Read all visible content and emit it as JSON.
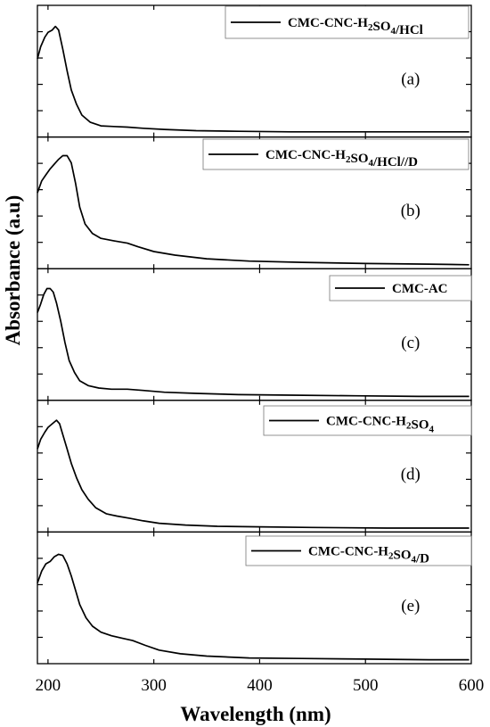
{
  "chart_data": {
    "type": "line",
    "xlabel": "Wavelength (nm)",
    "ylabel": "Absorbance (a.u)",
    "xlim": [
      190,
      600
    ],
    "x_ticks": [
      "200",
      "300",
      "400",
      "500",
      "600"
    ],
    "y_tick_labels": "none",
    "grid": false,
    "legend_placement": "top-right of each panel",
    "line_color": "#000000",
    "panels": [
      {
        "tag": "(a)",
        "legend": {
          "prefix": "CMC-CNC-H",
          "sub1": "2",
          "mid": "SO",
          "sub2": "4",
          "suffix": "/HCl"
        },
        "series": {
          "name": "CMC-CNC-H2SO4/HCl",
          "x": [
            190,
            193,
            197,
            200,
            204,
            207,
            210,
            214,
            218,
            222,
            227,
            232,
            240,
            250,
            262,
            275,
            290,
            310,
            340,
            380,
            430,
            480,
            540,
            598
          ],
          "y": [
            0.62,
            0.72,
            0.8,
            0.84,
            0.86,
            0.89,
            0.86,
            0.7,
            0.52,
            0.36,
            0.24,
            0.15,
            0.09,
            0.06,
            0.055,
            0.05,
            0.04,
            0.03,
            0.02,
            0.015,
            0.01,
            0.01,
            0.01,
            0.01
          ]
        }
      },
      {
        "tag": "(b)",
        "legend": {
          "prefix": "CMC-CNC-H",
          "sub1": "2",
          "mid": "SO",
          "sub2": "4",
          "suffix": "/HCl//D"
        },
        "series": {
          "name": "CMC-CNC-H2SO4/HCl//D",
          "x": [
            190,
            194,
            198,
            202,
            206,
            210,
            214,
            218,
            222,
            226,
            230,
            235,
            242,
            250,
            262,
            275,
            285,
            300,
            320,
            350,
            390,
            440,
            500,
            560,
            598
          ],
          "y": [
            0.6,
            0.7,
            0.75,
            0.8,
            0.84,
            0.88,
            0.91,
            0.91,
            0.85,
            0.68,
            0.48,
            0.34,
            0.26,
            0.22,
            0.2,
            0.18,
            0.15,
            0.11,
            0.08,
            0.05,
            0.03,
            0.02,
            0.01,
            0.005,
            0.0
          ]
        }
      },
      {
        "tag": "(c)",
        "legend": {
          "prefix": "CMC-AC",
          "sub1": "",
          "mid": "",
          "sub2": "",
          "suffix": ""
        },
        "series": {
          "name": "CMC-AC",
          "x": [
            190,
            193,
            196,
            199,
            202,
            205,
            208,
            212,
            216,
            220,
            225,
            230,
            238,
            248,
            260,
            275,
            290,
            310,
            340,
            380,
            430,
            490,
            550,
            598
          ],
          "y": [
            0.7,
            0.77,
            0.85,
            0.9,
            0.9,
            0.87,
            0.78,
            0.63,
            0.45,
            0.3,
            0.2,
            0.13,
            0.09,
            0.07,
            0.06,
            0.06,
            0.05,
            0.035,
            0.025,
            0.015,
            0.01,
            0.005,
            0.0,
            0.0
          ]
        }
      },
      {
        "tag": "(d)",
        "legend": {
          "prefix": "CMC-CNC-H",
          "sub1": "2",
          "mid": "SO",
          "sub2": "4",
          "suffix": ""
        },
        "series": {
          "name": "CMC-CNC-H2SO4",
          "x": [
            190,
            193,
            197,
            200,
            204,
            208,
            211,
            214,
            218,
            222,
            227,
            232,
            238,
            245,
            255,
            265,
            278,
            290,
            305,
            330,
            360,
            400,
            450,
            520,
            598
          ],
          "y": [
            0.66,
            0.74,
            0.8,
            0.84,
            0.87,
            0.9,
            0.87,
            0.78,
            0.66,
            0.54,
            0.42,
            0.32,
            0.24,
            0.17,
            0.12,
            0.1,
            0.08,
            0.06,
            0.04,
            0.025,
            0.015,
            0.01,
            0.005,
            0.0,
            0.0
          ]
        }
      },
      {
        "tag": "(e)",
        "legend": {
          "prefix": "CMC-CNC-H",
          "sub1": "2",
          "mid": "SO",
          "sub2": "4",
          "suffix": "/D"
        },
        "series": {
          "name": "CMC-CNC-H2SO4/D",
          "x": [
            190,
            194,
            198,
            202,
            206,
            210,
            214,
            218,
            222,
            226,
            230,
            236,
            242,
            250,
            260,
            270,
            280,
            292,
            305,
            325,
            350,
            390,
            440,
            500,
            560,
            598
          ],
          "y": [
            0.64,
            0.74,
            0.8,
            0.82,
            0.86,
            0.88,
            0.87,
            0.8,
            0.7,
            0.58,
            0.46,
            0.35,
            0.28,
            0.23,
            0.2,
            0.18,
            0.16,
            0.12,
            0.08,
            0.05,
            0.03,
            0.015,
            0.01,
            0.005,
            0.0,
            0.0
          ]
        }
      }
    ]
  }
}
